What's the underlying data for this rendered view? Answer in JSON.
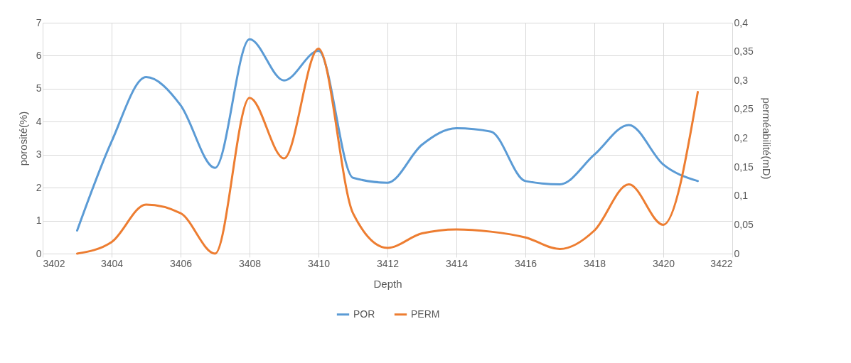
{
  "chart_data": {
    "type": "line",
    "xlabel": "Depth",
    "ylabel": "porosité(%)",
    "y2label": "perméabilité(mD)",
    "x": [
      3403,
      3404,
      3405,
      3406,
      3407,
      3408,
      3409,
      3410,
      3411,
      3412,
      3413,
      3414,
      3415,
      3416,
      3417,
      3418,
      3419,
      3420,
      3421
    ],
    "series": [
      {
        "name": "POR",
        "color": "#5b9bd5",
        "values": [
          0.7,
          3.4,
          5.35,
          4.5,
          2.6,
          6.5,
          5.25,
          6.15,
          2.3,
          2.15,
          3.3,
          3.8,
          3.7,
          2.2,
          2.1,
          3.0,
          3.9,
          2.7,
          2.2
        ]
      },
      {
        "name": "PERM",
        "color": "#ed7d31",
        "axis": "y2",
        "values": [
          0,
          0.02,
          0.085,
          0.07,
          0,
          0.27,
          0.165,
          0.355,
          0.07,
          0.01,
          0.035,
          0.042,
          0.038,
          0.028,
          0.008,
          0.04,
          0.12,
          0.05,
          0.28
        ]
      }
    ],
    "xlim": [
      3402,
      3422
    ],
    "xticks": [
      3402,
      3404,
      3406,
      3408,
      3410,
      3412,
      3414,
      3416,
      3418,
      3420,
      3422
    ],
    "ylim": [
      0,
      7
    ],
    "yticks": [
      0,
      1,
      2,
      3,
      4,
      5,
      6,
      7
    ],
    "y2lim": [
      0,
      0.4
    ],
    "y2ticks": [
      0,
      {
        "value": 0.05,
        "label": "0,05"
      },
      {
        "value": 0.1,
        "label": "0,1"
      },
      {
        "value": 0.15,
        "label": "0,15"
      },
      {
        "value": 0.2,
        "label": "0,2"
      },
      {
        "value": 0.25,
        "label": "0,25"
      },
      {
        "value": 0.3,
        "label": "0,3"
      },
      {
        "value": 0.35,
        "label": "0,35"
      },
      {
        "value": 0.4,
        "label": "0,4"
      }
    ],
    "grid": true,
    "legend": "bottom",
    "line_style": "solid"
  }
}
